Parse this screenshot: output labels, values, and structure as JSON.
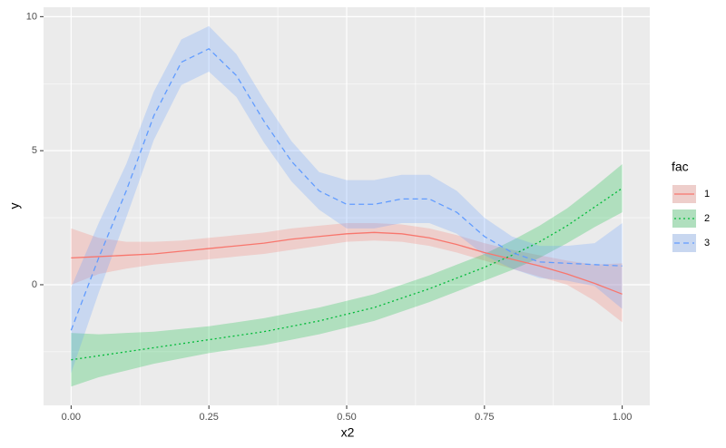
{
  "chart_data": {
    "type": "line",
    "x_label": "x2",
    "y_label": "y",
    "x": [
      0,
      0.05,
      0.1,
      0.15,
      0.2,
      0.25,
      0.3,
      0.35,
      0.4,
      0.45,
      0.5,
      0.55,
      0.6,
      0.65,
      0.7,
      0.75,
      0.8,
      0.85,
      0.9,
      0.95,
      1.0
    ],
    "series": [
      {
        "name": "1",
        "color": "#F8766D",
        "linetype": "solid",
        "values": [
          1.0,
          1.05,
          1.1,
          1.15,
          1.25,
          1.35,
          1.45,
          1.55,
          1.7,
          1.8,
          1.9,
          1.95,
          1.9,
          1.75,
          1.5,
          1.2,
          0.95,
          0.7,
          0.4,
          0.05,
          -0.35
        ],
        "lower": [
          0.0,
          0.4,
          0.6,
          0.75,
          0.85,
          0.95,
          1.05,
          1.15,
          1.3,
          1.45,
          1.6,
          1.65,
          1.6,
          1.45,
          1.2,
          0.9,
          0.6,
          0.3,
          0.0,
          -0.6,
          -1.4
        ],
        "upper": [
          2.1,
          1.75,
          1.6,
          1.6,
          1.65,
          1.75,
          1.85,
          1.95,
          2.1,
          2.2,
          2.3,
          2.3,
          2.25,
          2.1,
          1.85,
          1.55,
          1.3,
          1.1,
          0.9,
          0.75,
          0.8
        ]
      },
      {
        "name": "2",
        "color": "#00BA38",
        "linetype": "dotted",
        "values": [
          -2.8,
          -2.65,
          -2.5,
          -2.35,
          -2.2,
          -2.05,
          -1.9,
          -1.75,
          -1.55,
          -1.35,
          -1.1,
          -0.85,
          -0.5,
          -0.15,
          0.25,
          0.65,
          1.1,
          1.6,
          2.2,
          2.9,
          3.6
        ],
        "lower": [
          -3.8,
          -3.45,
          -3.2,
          -2.95,
          -2.75,
          -2.55,
          -2.4,
          -2.25,
          -2.05,
          -1.85,
          -1.6,
          -1.35,
          -1.0,
          -0.65,
          -0.25,
          0.15,
          0.55,
          1.0,
          1.55,
          2.15,
          2.7
        ],
        "upper": [
          -1.8,
          -1.85,
          -1.8,
          -1.75,
          -1.65,
          -1.55,
          -1.4,
          -1.25,
          -1.05,
          -0.85,
          -0.6,
          -0.35,
          0.0,
          0.35,
          0.75,
          1.15,
          1.65,
          2.2,
          2.85,
          3.65,
          4.5
        ]
      },
      {
        "name": "3",
        "color": "#619CFF",
        "linetype": "dashed",
        "values": [
          -1.7,
          1.0,
          3.5,
          6.3,
          8.3,
          8.8,
          7.8,
          6.1,
          4.6,
          3.5,
          3.0,
          3.0,
          3.2,
          3.2,
          2.7,
          1.8,
          1.2,
          0.85,
          0.8,
          0.75,
          0.7
        ],
        "lower": [
          -3.3,
          -0.3,
          2.5,
          5.4,
          7.45,
          7.95,
          7.0,
          5.3,
          3.85,
          2.8,
          2.1,
          2.1,
          2.3,
          2.3,
          1.9,
          1.1,
          0.6,
          0.25,
          0.15,
          -0.05,
          -0.9
        ],
        "upper": [
          -0.1,
          2.3,
          4.5,
          7.2,
          9.15,
          9.65,
          8.6,
          6.9,
          5.35,
          4.2,
          3.9,
          3.9,
          4.1,
          4.1,
          3.5,
          2.5,
          1.8,
          1.45,
          1.45,
          1.55,
          2.3
        ]
      }
    ],
    "legend_title": "fac",
    "legend_position": "right",
    "xlim": [
      -0.05,
      1.05
    ],
    "ylim": [
      -4.5,
      10.35
    ],
    "xticks": [
      {
        "value": 0,
        "label": "0.00"
      },
      {
        "value": 0.25,
        "label": "0.25"
      },
      {
        "value": 0.5,
        "label": "0.50"
      },
      {
        "value": 0.75,
        "label": "0.75"
      },
      {
        "value": 1,
        "label": "1.00"
      }
    ],
    "yticks": [
      0,
      5,
      10
    ],
    "grid": true
  }
}
